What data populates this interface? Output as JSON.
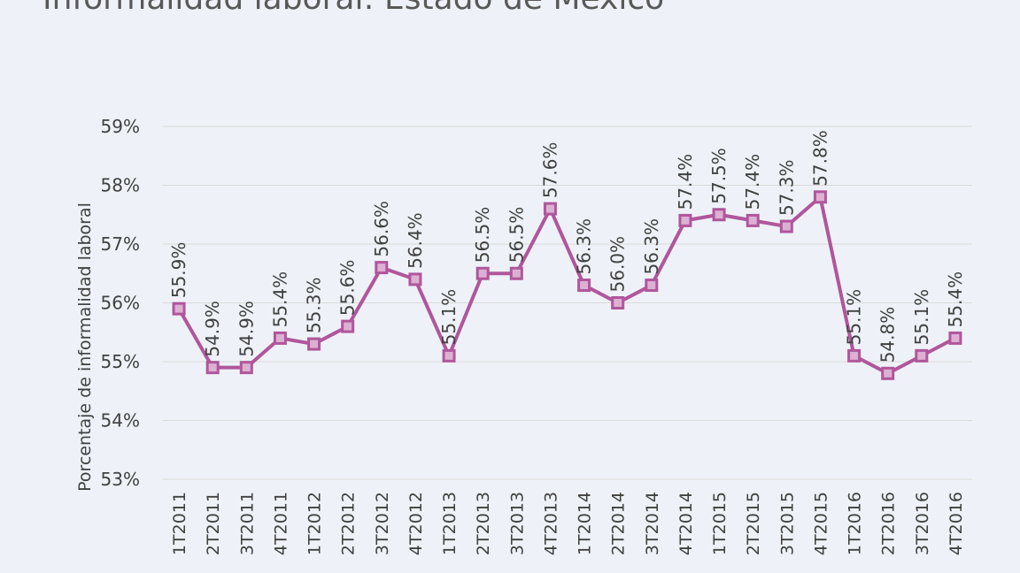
{
  "chart_data": {
    "type": "line",
    "title": "Informalidad laboral: Estado de México",
    "ylabel": "Porcentaje de informalidad laboral",
    "xlabel": "",
    "ylim": [
      53,
      59
    ],
    "yticks": [
      "53%",
      "54%",
      "55%",
      "56%",
      "57%",
      "58%",
      "59%"
    ],
    "grid": true,
    "categories": [
      "1T2011",
      "2T2011",
      "3T2011",
      "4T2011",
      "1T2012",
      "2T2012",
      "3T2012",
      "4T2012",
      "1T2013",
      "2T2013",
      "3T2013",
      "4T2013",
      "1T2014",
      "2T2014",
      "3T2014",
      "4T2014",
      "1T2015",
      "2T2015",
      "3T2015",
      "4T2015",
      "1T2016",
      "2T2016",
      "3T2016",
      "4T2016"
    ],
    "values": [
      55.9,
      54.9,
      54.9,
      55.4,
      55.3,
      55.6,
      56.6,
      56.4,
      55.1,
      56.5,
      56.5,
      57.6,
      56.3,
      56.0,
      56.3,
      57.4,
      57.5,
      57.4,
      57.3,
      57.8,
      55.1,
      54.8,
      55.1,
      55.4
    ],
    "data_labels": [
      "55.9%",
      "54.9%",
      "54.9%",
      "55.4%",
      "55.3%",
      "55.6%",
      "56.6%",
      "56.4%",
      "55.1%",
      "56.5%",
      "56.5%",
      "57.6%",
      "56.3%",
      "56.0%",
      "56.3%",
      "57.4%",
      "57.5%",
      "57.4%",
      "57.3%",
      "57.8%",
      "55.1%",
      "54.8%",
      "55.1%",
      "55.4%"
    ],
    "colors": {
      "line": "#b0569c",
      "marker_fill": "#dcb0d2",
      "grid": "#d9d9d9"
    }
  }
}
